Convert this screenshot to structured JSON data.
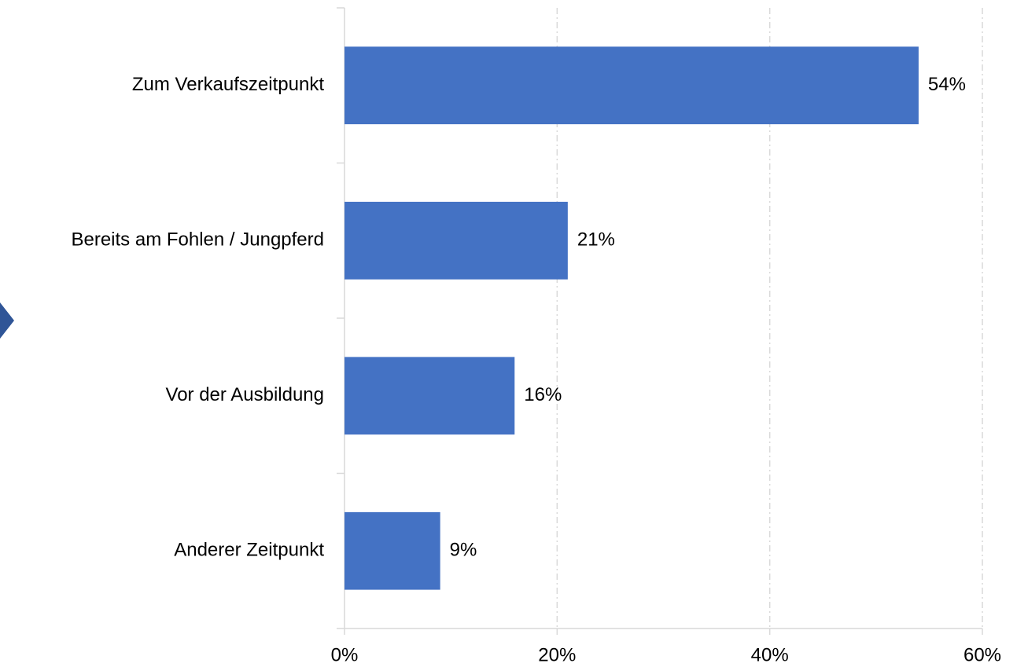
{
  "chart_data": {
    "type": "barh",
    "categories": [
      "Zum Verkaufszeitpunkt",
      "Bereits am Fohlen / Jungpferd",
      "Vor der Ausbildung",
      "Anderer Zeitpunkt"
    ],
    "values": [
      54,
      21,
      16,
      9
    ],
    "value_labels": [
      "54%",
      "21%",
      "16%",
      "9%"
    ],
    "color": "#4472c4",
    "xlim": [
      0,
      60
    ],
    "xticks": [
      {
        "value": 0,
        "label": "0%"
      },
      {
        "value": 20,
        "label": "20%"
      },
      {
        "value": 40,
        "label": "40%"
      },
      {
        "value": 60,
        "label": "60%"
      }
    ],
    "grid": true
  }
}
